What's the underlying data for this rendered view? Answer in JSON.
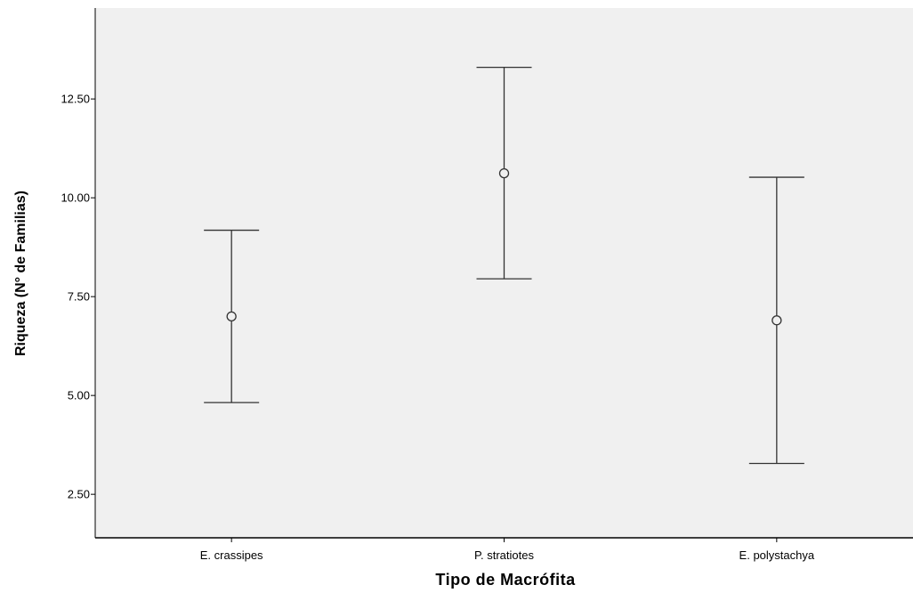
{
  "chart_data": {
    "type": "errorbar",
    "xlabel": "Tipo de Macrófita",
    "ylabel": "Riqueza (N° de Familias)",
    "categories": [
      "E. crassipes",
      "P. stratiotes",
      "E. polystachya"
    ],
    "series": [
      {
        "means": [
          7.0,
          10.62,
          6.9
        ],
        "lower": [
          4.82,
          7.95,
          3.28
        ],
        "upper": [
          9.18,
          13.3,
          10.52
        ]
      }
    ],
    "ylim": [
      1.4,
      14.8
    ],
    "yticks": [
      2.5,
      5.0,
      7.5,
      10.0,
      12.5
    ],
    "ytick_labels": [
      "2.50",
      "5.00",
      "7.50",
      "10.00",
      "12.50"
    ],
    "grid": false,
    "colors": {
      "plot_background": "#f0f0f0",
      "marks": "#333333",
      "axis": "#000000"
    }
  }
}
